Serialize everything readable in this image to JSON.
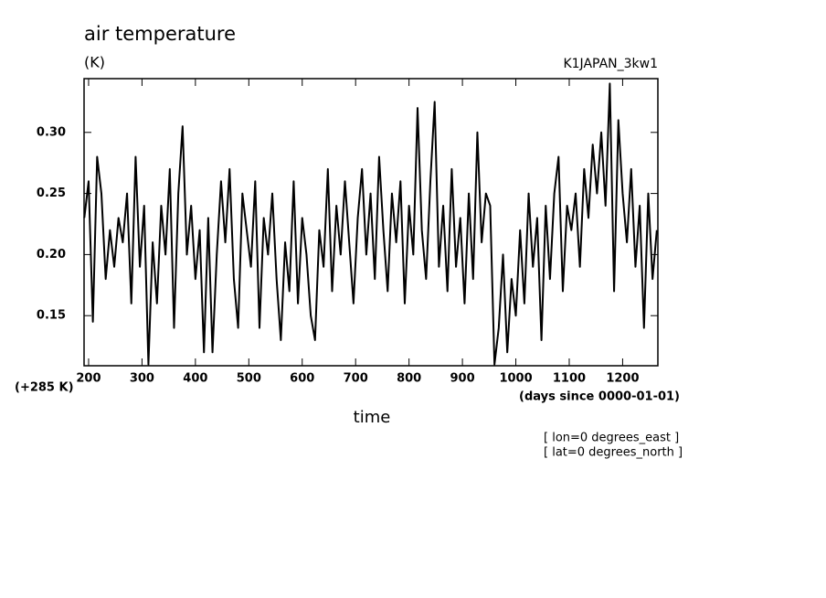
{
  "chart_data": {
    "type": "line",
    "title": "air temperature",
    "y_unit_label": "(K)",
    "subtitle": "K1JAPAN_3kw1",
    "y_offset_label": "(+285 K)",
    "xlabel": "time",
    "x_unit_label": "(days since 0000-01-01)",
    "annotations": [
      "[ lon=0 degrees_east ]",
      "[ lat=0 degrees_north ]"
    ],
    "xlim": [
      191.5,
      1266
    ],
    "xticks": [
      200,
      300,
      400,
      500,
      600,
      700,
      800,
      900,
      1000,
      1100,
      1200
    ],
    "ylim": [
      0.109,
      0.344
    ],
    "yticks": [
      {
        "value": 0.15,
        "label": "0.15"
      },
      {
        "value": 0.2,
        "label": "0.20"
      },
      {
        "value": 0.25,
        "label": "0.25"
      },
      {
        "value": 0.3,
        "label": "0.30"
      }
    ],
    "color": "#000000",
    "x": [
      192,
      200,
      208,
      216,
      224,
      232,
      240,
      248,
      256,
      264,
      272,
      280,
      288,
      296,
      304,
      312,
      320,
      328,
      336,
      344,
      352,
      360,
      368,
      376,
      384,
      392,
      400,
      408,
      416,
      424,
      432,
      440,
      448,
      456,
      464,
      472,
      480,
      488,
      496,
      504,
      512,
      520,
      528,
      536,
      544,
      552,
      560,
      568,
      576,
      584,
      592,
      600,
      608,
      616,
      624,
      632,
      640,
      648,
      656,
      664,
      672,
      680,
      688,
      696,
      704,
      712,
      720,
      728,
      736,
      744,
      752,
      760,
      768,
      776,
      784,
      792,
      800,
      808,
      816,
      824,
      832,
      840,
      848,
      856,
      864,
      872,
      880,
      888,
      896,
      904,
      912,
      920,
      928,
      936,
      944,
      952,
      960,
      968,
      976,
      984,
      992,
      1000,
      1008,
      1016,
      1024,
      1032,
      1040,
      1048,
      1056,
      1064,
      1072,
      1080,
      1088,
      1096,
      1104,
      1112,
      1120,
      1128,
      1136,
      1144,
      1152,
      1160,
      1168,
      1176,
      1184,
      1192,
      1200,
      1208,
      1216,
      1224,
      1232,
      1240,
      1248,
      1256,
      1264
    ],
    "values": [
      0.23,
      0.26,
      0.145,
      0.28,
      0.25,
      0.18,
      0.22,
      0.19,
      0.23,
      0.21,
      0.25,
      0.16,
      0.28,
      0.19,
      0.24,
      0.11,
      0.21,
      0.16,
      0.24,
      0.2,
      0.27,
      0.14,
      0.25,
      0.305,
      0.2,
      0.24,
      0.18,
      0.22,
      0.12,
      0.23,
      0.12,
      0.2,
      0.26,
      0.21,
      0.27,
      0.18,
      0.14,
      0.25,
      0.22,
      0.19,
      0.26,
      0.14,
      0.23,
      0.2,
      0.25,
      0.18,
      0.13,
      0.21,
      0.17,
      0.26,
      0.16,
      0.23,
      0.2,
      0.15,
      0.13,
      0.22,
      0.19,
      0.27,
      0.17,
      0.24,
      0.2,
      0.26,
      0.21,
      0.16,
      0.23,
      0.27,
      0.2,
      0.25,
      0.18,
      0.28,
      0.22,
      0.17,
      0.25,
      0.21,
      0.26,
      0.16,
      0.24,
      0.2,
      0.32,
      0.22,
      0.18,
      0.26,
      0.325,
      0.19,
      0.24,
      0.17,
      0.27,
      0.19,
      0.23,
      0.16,
      0.25,
      0.18,
      0.3,
      0.21,
      0.25,
      0.24,
      0.11,
      0.14,
      0.2,
      0.12,
      0.18,
      0.15,
      0.22,
      0.16,
      0.25,
      0.19,
      0.23,
      0.13,
      0.24,
      0.18,
      0.25,
      0.28,
      0.17,
      0.24,
      0.22,
      0.25,
      0.19,
      0.27,
      0.23,
      0.29,
      0.25,
      0.3,
      0.24,
      0.34,
      0.17,
      0.31,
      0.25,
      0.21,
      0.27,
      0.19,
      0.24,
      0.14,
      0.25,
      0.18,
      0.22
    ]
  }
}
